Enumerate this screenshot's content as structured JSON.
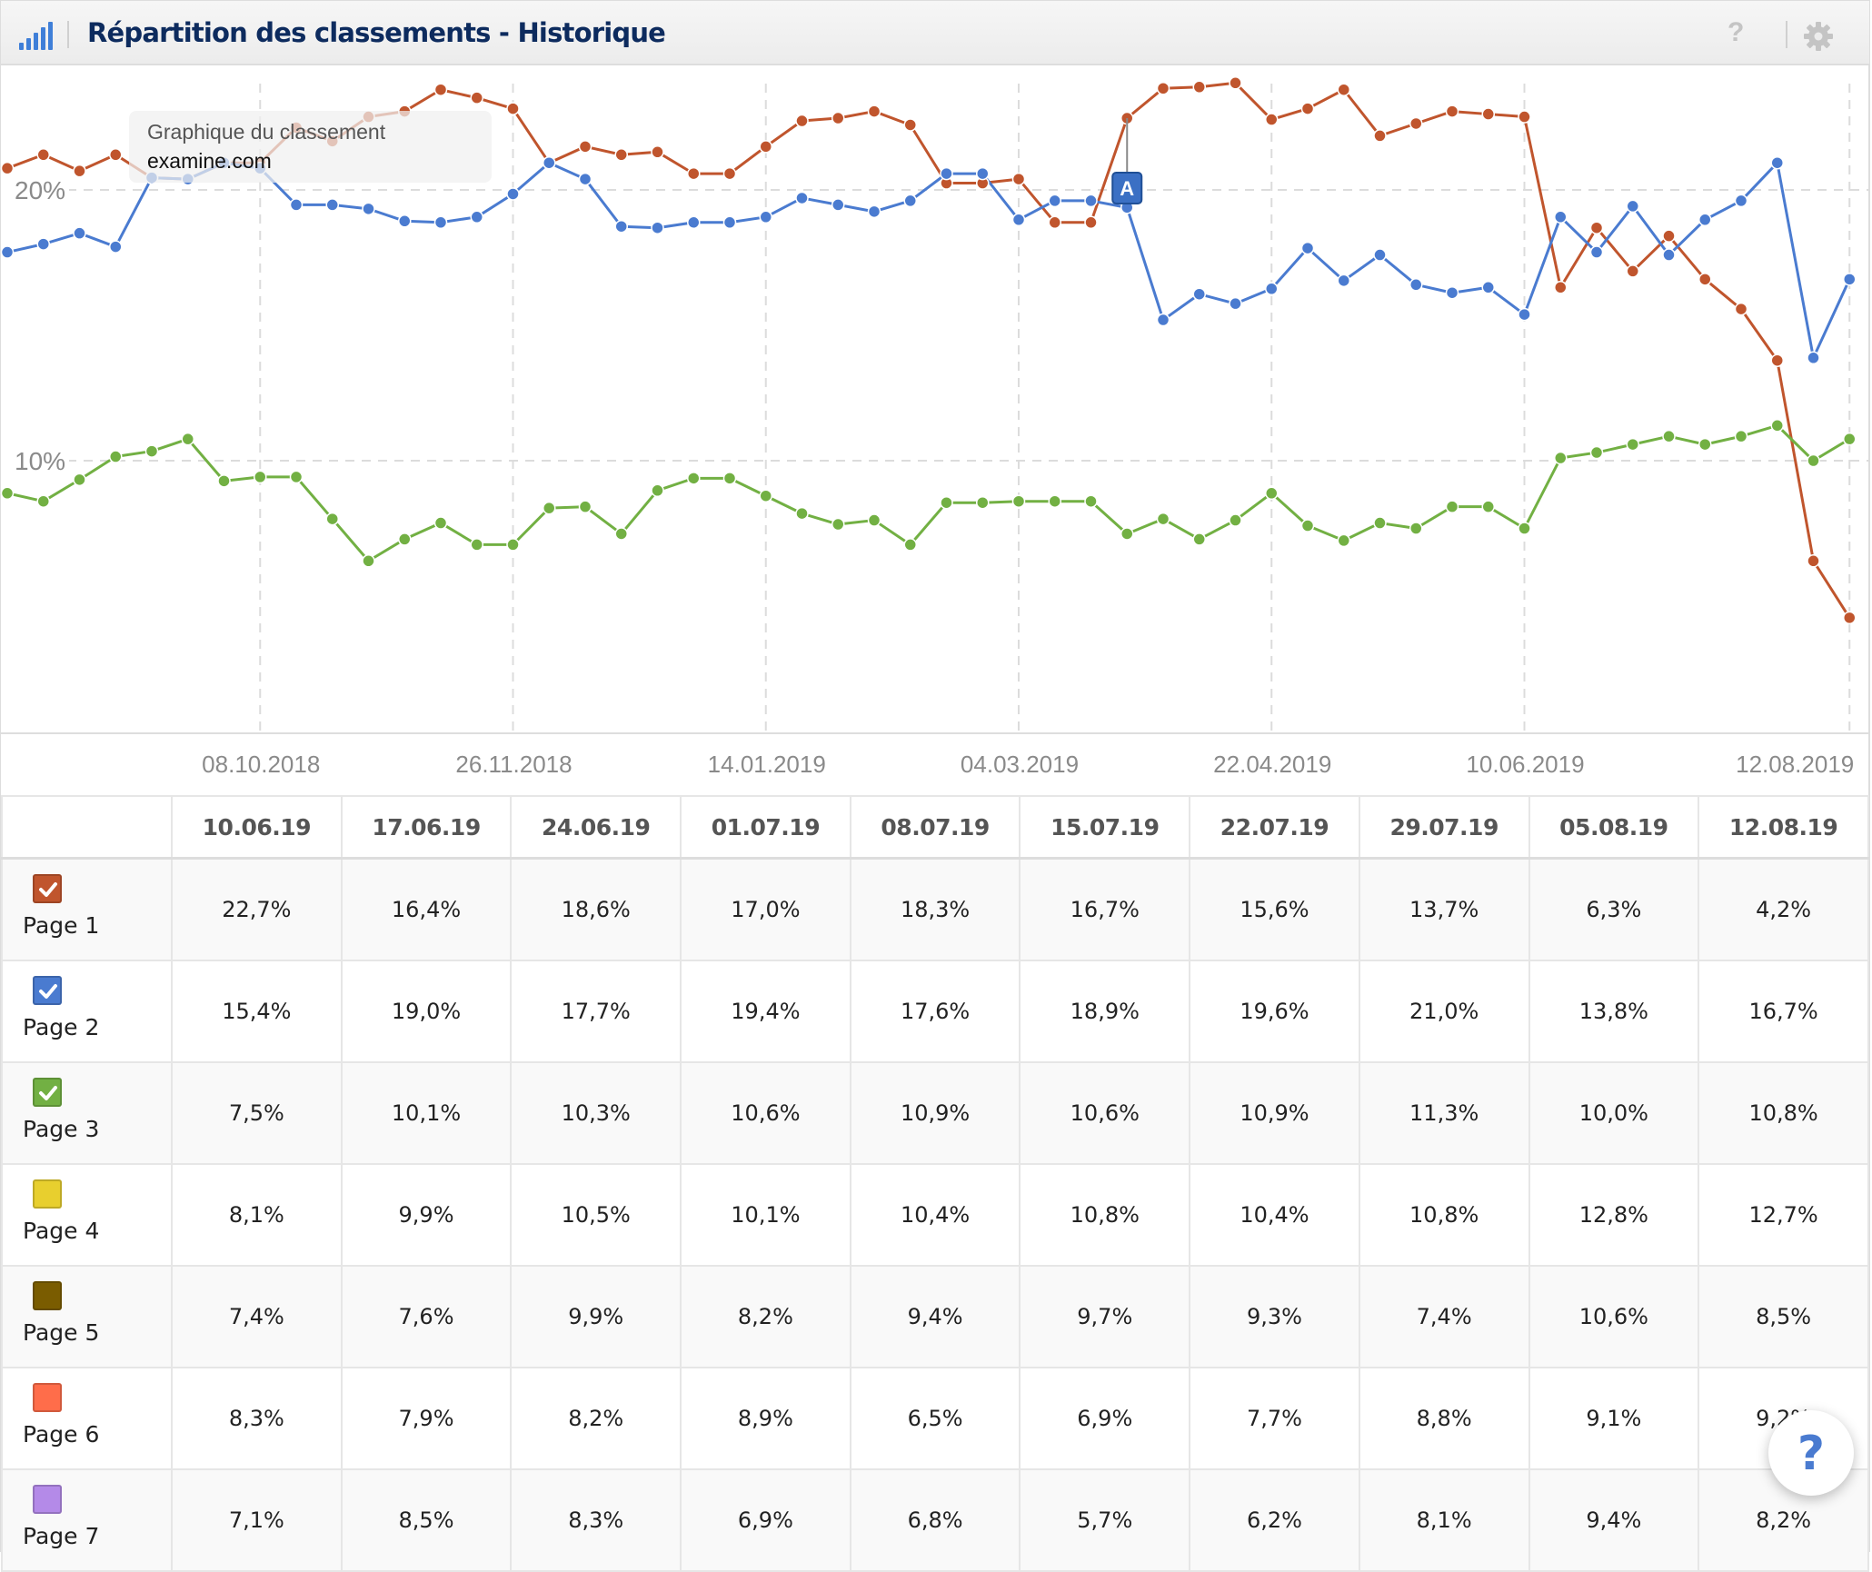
{
  "header": {
    "title": "Répartition des classements - Historique",
    "icon": "signal-bars-icon",
    "help_label": "?",
    "settings_icon": "gear-icon"
  },
  "tooltip": {
    "line1": "Graphique du classement",
    "line2": "examine.com"
  },
  "annotation": {
    "label": "A",
    "index": 31
  },
  "colors": {
    "page1": "#c0552d",
    "page2": "#4a7bd0",
    "page3": "#72b043",
    "page4": "#e8cf2e",
    "page5": "#7a5c00",
    "page6": "#ff6d4a",
    "page7": "#b48ae8",
    "annotation": "#3b70c4"
  },
  "chart_data": {
    "type": "line",
    "title": "Répartition des classements - Historique",
    "xlabel": "",
    "ylabel": "",
    "ylim": [
      0,
      24.7
    ],
    "yticks": [
      {
        "value": 10,
        "label": "10%"
      },
      {
        "value": 20,
        "label": "20%"
      }
    ],
    "grid": true,
    "x_tick_labels": [
      {
        "index": 7,
        "label": "08.10.2018"
      },
      {
        "index": 14,
        "label": "26.11.2018"
      },
      {
        "index": 21,
        "label": "14.01.2019"
      },
      {
        "index": 28,
        "label": "04.03.2019"
      },
      {
        "index": 35,
        "label": "22.04.2019"
      },
      {
        "index": 42,
        "label": "10.06.2019"
      },
      {
        "index": 51,
        "label": "12.08.2019"
      }
    ],
    "n_points": 52,
    "series": [
      {
        "name": "Page 1",
        "color": "#c0552d",
        "values": [
          20.8,
          21.3,
          20.7,
          21.3,
          20.45,
          20.4,
          21.0,
          21.0,
          22.3,
          21.8,
          22.7,
          22.9,
          23.7,
          23.4,
          23.0,
          21.0,
          21.6,
          21.3,
          21.4,
          20.6,
          20.6,
          21.6,
          22.55,
          22.65,
          22.9,
          22.4,
          20.25,
          20.25,
          20.4,
          18.8,
          18.8,
          22.65,
          23.75,
          23.8,
          23.95,
          22.6,
          23.0,
          23.7,
          22.0,
          22.45,
          22.9,
          22.8,
          22.7,
          16.4,
          18.6,
          17.0,
          18.3,
          16.7,
          15.6,
          13.7,
          6.3,
          4.2
        ]
      },
      {
        "name": "Page 2",
        "color": "#4a7bd0",
        "values": [
          17.7,
          18.0,
          18.4,
          17.9,
          20.45,
          20.4,
          21.0,
          20.8,
          19.45,
          19.45,
          19.3,
          18.85,
          18.8,
          19.0,
          19.85,
          21.0,
          20.4,
          18.65,
          18.6,
          18.8,
          18.8,
          19.0,
          19.7,
          19.45,
          19.2,
          19.6,
          20.6,
          20.6,
          18.9,
          19.6,
          19.6,
          19.35,
          15.2,
          16.15,
          15.8,
          16.35,
          17.85,
          16.65,
          17.6,
          16.5,
          16.2,
          16.4,
          15.4,
          19.0,
          17.7,
          19.4,
          17.6,
          18.9,
          19.6,
          21.0,
          13.8,
          16.7
        ]
      },
      {
        "name": "Page 3",
        "color": "#72b043",
        "values": [
          8.8,
          8.5,
          9.3,
          10.15,
          10.35,
          10.8,
          9.25,
          9.4,
          9.4,
          7.85,
          6.3,
          7.1,
          7.7,
          6.9,
          6.9,
          8.25,
          8.3,
          7.3,
          8.9,
          9.35,
          9.35,
          8.7,
          8.05,
          7.65,
          7.8,
          6.9,
          8.45,
          8.45,
          8.5,
          8.5,
          8.5,
          7.3,
          7.85,
          7.1,
          7.8,
          8.8,
          7.6,
          7.05,
          7.7,
          7.5,
          8.3,
          8.3,
          7.5,
          10.1,
          10.3,
          10.6,
          10.9,
          10.6,
          10.9,
          11.3,
          10.0,
          10.8
        ]
      }
    ]
  },
  "table": {
    "columns": [
      "10.06.19",
      "17.06.19",
      "24.06.19",
      "01.07.19",
      "08.07.19",
      "15.07.19",
      "22.07.19",
      "29.07.19",
      "05.08.19",
      "12.08.19"
    ],
    "rows": [
      {
        "label": "Page 1",
        "checked": true,
        "color": "#c0552d",
        "values": [
          "22,7%",
          "16,4%",
          "18,6%",
          "17,0%",
          "18,3%",
          "16,7%",
          "15,6%",
          "13,7%",
          "6,3%",
          "4,2%"
        ]
      },
      {
        "label": "Page 2",
        "checked": true,
        "color": "#4a7bd0",
        "values": [
          "15,4%",
          "19,0%",
          "17,7%",
          "19,4%",
          "17,6%",
          "18,9%",
          "19,6%",
          "21,0%",
          "13,8%",
          "16,7%"
        ]
      },
      {
        "label": "Page 3",
        "checked": true,
        "color": "#72b043",
        "values": [
          "7,5%",
          "10,1%",
          "10,3%",
          "10,6%",
          "10,9%",
          "10,6%",
          "10,9%",
          "11,3%",
          "10,0%",
          "10,8%"
        ]
      },
      {
        "label": "Page 4",
        "checked": false,
        "color": "#e8cf2e",
        "values": [
          "8,1%",
          "9,9%",
          "10,5%",
          "10,1%",
          "10,4%",
          "10,8%",
          "10,4%",
          "10,8%",
          "12,8%",
          "12,7%"
        ]
      },
      {
        "label": "Page 5",
        "checked": false,
        "color": "#7a5c00",
        "values": [
          "7,4%",
          "7,6%",
          "9,9%",
          "8,2%",
          "9,4%",
          "9,7%",
          "9,3%",
          "7,4%",
          "10,6%",
          "8,5%"
        ]
      },
      {
        "label": "Page 6",
        "checked": false,
        "color": "#ff6d4a",
        "values": [
          "8,3%",
          "7,9%",
          "8,2%",
          "8,9%",
          "6,5%",
          "6,9%",
          "7,7%",
          "8,8%",
          "9,1%",
          "9,2%"
        ]
      },
      {
        "label": "Page 7",
        "checked": false,
        "color": "#b48ae8",
        "values": [
          "7,1%",
          "8,5%",
          "8,3%",
          "6,9%",
          "6,8%",
          "5,7%",
          "6,2%",
          "8,1%",
          "9,4%",
          "8,2%"
        ]
      }
    ]
  },
  "floating_help": {
    "label": "?",
    "icon": "help-icon"
  }
}
